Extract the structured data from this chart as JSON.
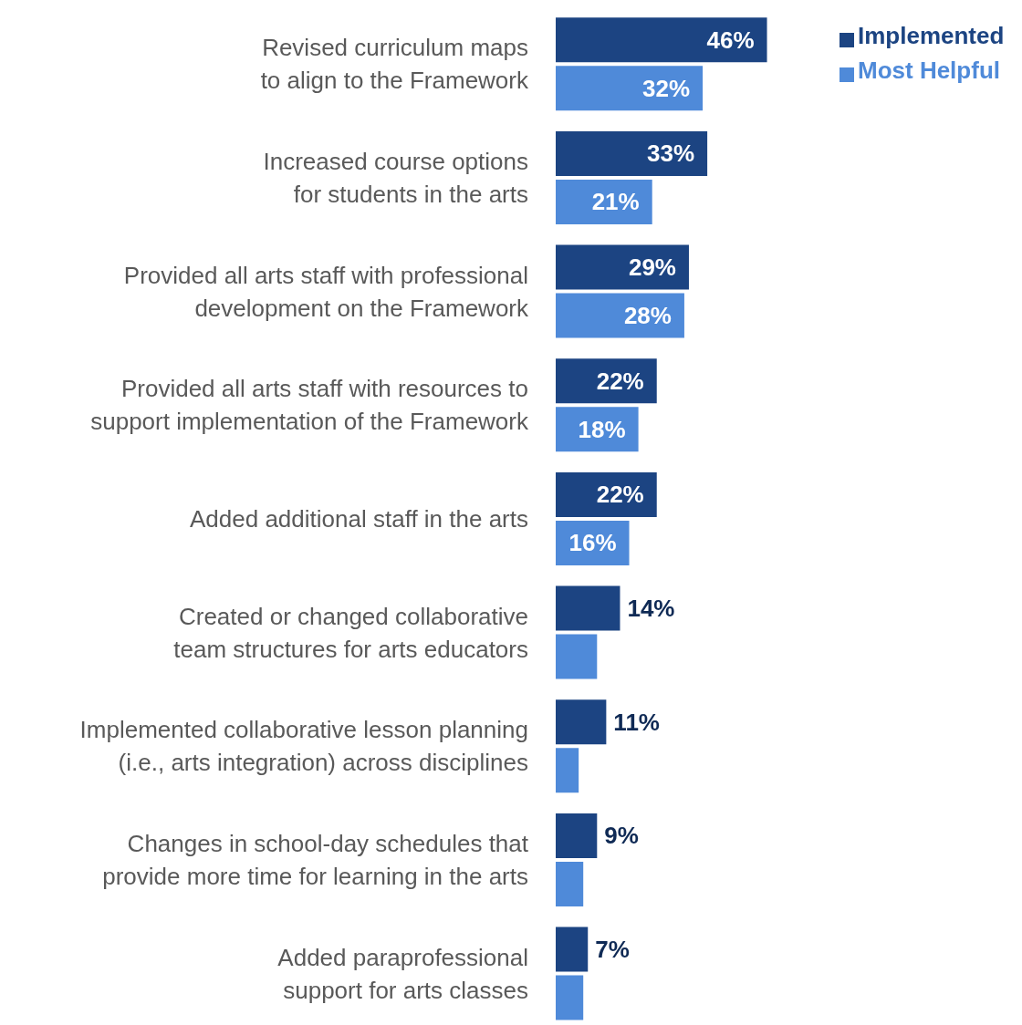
{
  "chart_data": {
    "type": "bar",
    "orientation": "horizontal",
    "legend": "top right",
    "categories": [
      "Revised curriculum maps to align to the Framework",
      "Increased course options for students in the arts",
      "Provided all arts staff with professional development on the Framework",
      "Provided all arts staff with resources to support implementation of the Framework",
      "Added additional staff in the arts",
      "Created or changed collaborative team structures for arts educators",
      "Implemented collaborative lesson planning (i.e., arts integration) across disciplines",
      "Changes in school-day schedules that provide more time for learning in the arts",
      "Added paraprofessional support for arts classes"
    ],
    "series": [
      {
        "name": "Implemented",
        "color": "#1c4482",
        "values": [
          46,
          33,
          29,
          22,
          22,
          14,
          11,
          9,
          7
        ],
        "value_labels": [
          "46%",
          "33%",
          "29%",
          "22%",
          "22%",
          "14%",
          "11%",
          "9%",
          "7%"
        ]
      },
      {
        "name": "Most Helpful",
        "color": "#4f8ad9",
        "values": [
          32,
          21,
          28,
          18,
          16,
          9,
          5,
          6,
          6
        ],
        "value_labels": [
          "32%",
          "21%",
          "28%",
          "18%",
          "16%",
          null,
          null,
          null,
          null
        ]
      }
    ]
  }
}
